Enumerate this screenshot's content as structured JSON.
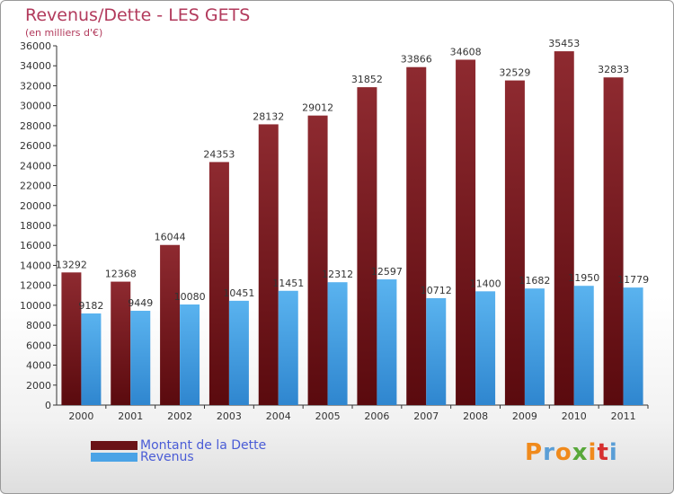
{
  "header": {
    "title": "Revenus/Dette - LES GETS",
    "subtitle": "(en milliers d'€)"
  },
  "chart_data": {
    "type": "bar",
    "title": "Revenus/Dette - LES GETS",
    "subtitle": "(en milliers d'€)",
    "categories": [
      "2000",
      "2001",
      "2002",
      "2003",
      "2004",
      "2005",
      "2006",
      "2007",
      "2008",
      "2009",
      "2010",
      "2011"
    ],
    "series": [
      {
        "name": "Montant de la Dette",
        "color": "#7a1a1e",
        "values": [
          13292,
          12368,
          16044,
          24353,
          28132,
          29012,
          31852,
          33866,
          34608,
          32529,
          35453,
          32833
        ]
      },
      {
        "name": "Revenus",
        "color": "#4aa3e6",
        "values": [
          9182,
          9449,
          10080,
          10451,
          11451,
          12312,
          12597,
          10712,
          11400,
          11682,
          11950,
          11779
        ]
      }
    ],
    "ylim": [
      0,
      36000
    ],
    "yticks": [
      0,
      2000,
      4000,
      6000,
      8000,
      10000,
      12000,
      14000,
      16000,
      18000,
      20000,
      22000,
      24000,
      26000,
      28000,
      30000,
      32000,
      34000,
      36000
    ],
    "legend_position": "bottom-left",
    "grid": false
  },
  "legend": {
    "items": [
      {
        "label": "Montant de la Dette",
        "color": "#7a1a1e"
      },
      {
        "label": "Revenus",
        "color": "#4aa3e6"
      }
    ]
  },
  "logo": {
    "text": "Proxiti"
  }
}
